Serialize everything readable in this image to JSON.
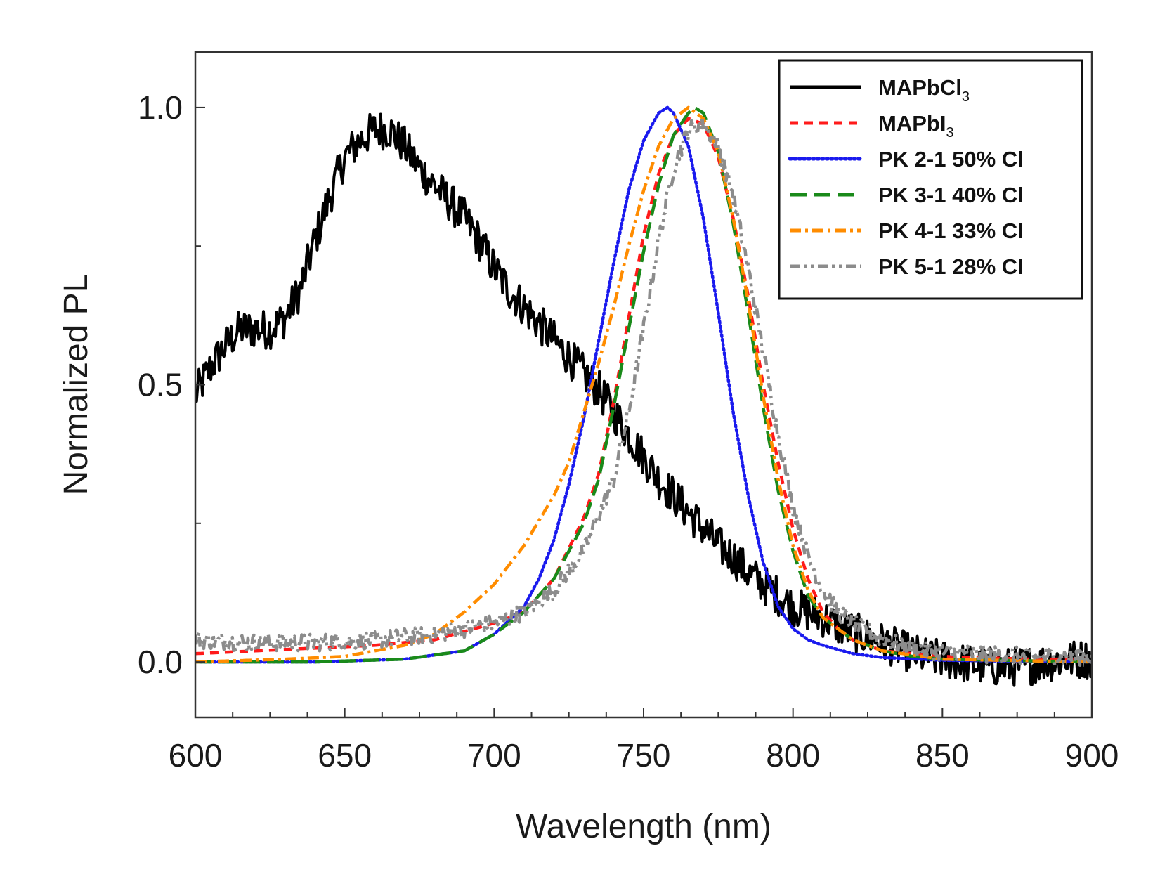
{
  "chart_data": {
    "type": "line",
    "title": "",
    "xlabel": "Wavelength (nm)",
    "ylabel": "Normalized PL",
    "xlim": [
      600,
      900
    ],
    "ylim": [
      -0.1,
      1.1
    ],
    "x_ticks": [
      600,
      650,
      700,
      750,
      800,
      850,
      900
    ],
    "x_tick_labels": [
      "600",
      "650",
      "700",
      "750",
      "800",
      "850",
      "900"
    ],
    "y_ticks": [
      0.0,
      0.5,
      1.0
    ],
    "y_tick_labels": [
      "0.0",
      "0.5",
      "1.0"
    ],
    "legend_position": "top-right",
    "grid": false,
    "series": [
      {
        "name": "MAPbCl",
        "subscript": "3",
        "color": "#000000",
        "style": "solid",
        "noise": 0.018,
        "x": [
          600,
          605,
          610,
          615,
          620,
          625,
          630,
          635,
          640,
          645,
          650,
          655,
          660,
          665,
          670,
          675,
          680,
          685,
          690,
          695,
          700,
          705,
          710,
          715,
          720,
          725,
          730,
          735,
          740,
          745,
          750,
          755,
          760,
          765,
          770,
          775,
          780,
          785,
          790,
          795,
          800,
          805,
          810,
          815,
          820,
          825,
          830,
          835,
          840,
          845,
          850,
          855,
          860,
          865,
          870,
          875,
          880,
          885,
          890,
          895,
          900
        ],
        "y": [
          0.48,
          0.53,
          0.57,
          0.6,
          0.6,
          0.6,
          0.62,
          0.67,
          0.76,
          0.84,
          0.91,
          0.94,
          0.96,
          0.96,
          0.93,
          0.89,
          0.86,
          0.83,
          0.8,
          0.76,
          0.71,
          0.67,
          0.64,
          0.61,
          0.58,
          0.55,
          0.52,
          0.49,
          0.45,
          0.41,
          0.37,
          0.33,
          0.3,
          0.27,
          0.24,
          0.21,
          0.19,
          0.16,
          0.14,
          0.12,
          0.1,
          0.09,
          0.08,
          0.065,
          0.055,
          0.045,
          0.035,
          0.025,
          0.015,
          0.008,
          0.005,
          0.0,
          -0.005,
          -0.008,
          -0.01,
          -0.008,
          -0.005,
          0.0,
          0.003,
          0.005,
          0.005
        ]
      },
      {
        "name": "MAPbI",
        "subscript": "3",
        "color": "#ff1a1a",
        "style": "dashed",
        "noise": 0,
        "x": [
          600,
          620,
          640,
          660,
          680,
          700,
          710,
          720,
          730,
          735,
          740,
          745,
          750,
          755,
          760,
          765,
          770,
          775,
          780,
          785,
          790,
          795,
          800,
          805,
          810,
          815,
          820,
          830,
          840,
          850,
          860,
          880,
          900
        ],
        "y": [
          0.015,
          0.02,
          0.025,
          0.03,
          0.04,
          0.07,
          0.09,
          0.15,
          0.26,
          0.34,
          0.47,
          0.62,
          0.77,
          0.88,
          0.95,
          0.98,
          0.97,
          0.91,
          0.8,
          0.66,
          0.5,
          0.36,
          0.24,
          0.15,
          0.09,
          0.06,
          0.04,
          0.02,
          0.015,
          0.01,
          0.008,
          0.005,
          0.005
        ]
      },
      {
        "name": "PK 2-1 50% Cl",
        "subscript": "",
        "color": "#1a1aee",
        "style": "dotted",
        "noise": 0,
        "x": [
          600,
          640,
          670,
          690,
          700,
          710,
          715,
          720,
          725,
          730,
          735,
          740,
          745,
          750,
          755,
          758,
          760,
          765,
          770,
          775,
          780,
          785,
          790,
          795,
          800,
          805,
          810,
          820,
          830,
          850,
          900
        ],
        "y": [
          0.0,
          0.0,
          0.005,
          0.02,
          0.05,
          0.1,
          0.15,
          0.22,
          0.32,
          0.44,
          0.58,
          0.72,
          0.85,
          0.94,
          0.99,
          1.0,
          0.99,
          0.93,
          0.8,
          0.63,
          0.45,
          0.3,
          0.18,
          0.1,
          0.06,
          0.04,
          0.03,
          0.015,
          0.008,
          0.003,
          0.0
        ]
      },
      {
        "name": "PK 3-1 40% Cl",
        "subscript": "",
        "color": "#1a8a1a",
        "style": "longdash",
        "noise": 0,
        "x": [
          600,
          640,
          670,
          690,
          700,
          710,
          720,
          730,
          735,
          740,
          745,
          750,
          755,
          760,
          765,
          767,
          770,
          775,
          780,
          785,
          790,
          795,
          800,
          805,
          810,
          820,
          830,
          840,
          850,
          900
        ],
        "y": [
          0.0,
          0.0,
          0.005,
          0.02,
          0.05,
          0.09,
          0.15,
          0.25,
          0.33,
          0.46,
          0.6,
          0.74,
          0.86,
          0.95,
          0.99,
          1.0,
          0.99,
          0.92,
          0.79,
          0.63,
          0.46,
          0.31,
          0.2,
          0.12,
          0.08,
          0.04,
          0.02,
          0.01,
          0.005,
          0.0
        ]
      },
      {
        "name": "PK 4-1 33% Cl",
        "subscript": "",
        "color": "#ff8c00",
        "style": "dashdot",
        "noise": 0,
        "x": [
          600,
          630,
          650,
          670,
          680,
          690,
          700,
          710,
          720,
          725,
          730,
          735,
          740,
          745,
          750,
          755,
          760,
          765,
          770,
          775,
          780,
          785,
          790,
          795,
          800,
          805,
          810,
          820,
          830,
          850,
          900
        ],
        "y": [
          0.0,
          0.005,
          0.01,
          0.03,
          0.05,
          0.09,
          0.14,
          0.21,
          0.3,
          0.36,
          0.45,
          0.54,
          0.64,
          0.75,
          0.85,
          0.93,
          0.98,
          1.0,
          0.98,
          0.92,
          0.8,
          0.65,
          0.48,
          0.33,
          0.21,
          0.13,
          0.08,
          0.04,
          0.02,
          0.005,
          0.0
        ]
      },
      {
        "name": "PK 5-1 28% Cl",
        "subscript": "",
        "color": "#8c8c8c",
        "style": "dashdotdot",
        "noise": 0.008,
        "x": [
          600,
          620,
          640,
          660,
          680,
          700,
          710,
          720,
          730,
          740,
          745,
          750,
          755,
          760,
          765,
          770,
          775,
          780,
          785,
          790,
          795,
          800,
          805,
          810,
          815,
          820,
          830,
          840,
          850,
          860,
          880,
          900
        ],
        "y": [
          0.04,
          0.035,
          0.035,
          0.04,
          0.05,
          0.07,
          0.09,
          0.13,
          0.2,
          0.33,
          0.45,
          0.6,
          0.76,
          0.89,
          0.96,
          0.97,
          0.93,
          0.84,
          0.71,
          0.56,
          0.41,
          0.28,
          0.19,
          0.13,
          0.09,
          0.07,
          0.04,
          0.025,
          0.018,
          0.015,
          0.01,
          0.01
        ]
      }
    ]
  }
}
